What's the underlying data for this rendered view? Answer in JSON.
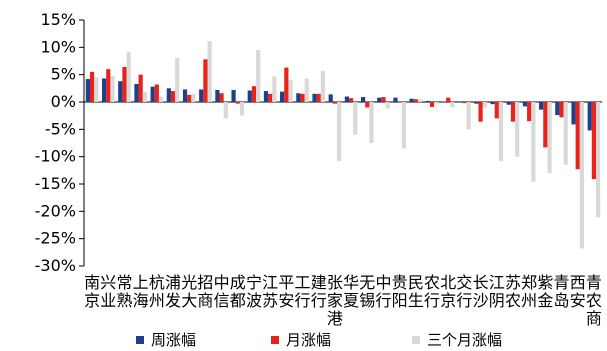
{
  "chart_data": {
    "type": "bar",
    "title": "",
    "xlabel": "",
    "ylabel": "",
    "ylim": [
      -30,
      15
    ],
    "y_ticks": [
      "15%",
      "10%",
      "5%",
      "0%",
      "-5%",
      "-10%",
      "-15%",
      "-20%",
      "-25%",
      "-30%"
    ],
    "y_tick_values": [
      15,
      10,
      5,
      0,
      -5,
      -10,
      -15,
      -20,
      -25,
      -30
    ],
    "grid": false,
    "legend_position": "bottom",
    "categories": [
      "南京",
      "兴业",
      "常熟",
      "上海",
      "杭州",
      "浦发",
      "光大",
      "招商",
      "中信",
      "成都",
      "宁波",
      "江苏",
      "平安",
      "工行",
      "建行",
      "张家港",
      "华夏",
      "无锡",
      "中行",
      "贵阳",
      "民生",
      "农行",
      "北京",
      "交行",
      "长沙",
      "江阴",
      "苏农",
      "郑州",
      "紫金",
      "青岛",
      "西安",
      "青农商"
    ],
    "series": [
      {
        "name": "周涨幅",
        "color": "#1f3f8f",
        "values": [
          4.2,
          4.3,
          3.8,
          3.3,
          2.8,
          2.5,
          2.3,
          2.3,
          2.2,
          2.2,
          2.1,
          2.0,
          1.9,
          1.6,
          1.5,
          1.4,
          1.0,
          0.9,
          0.8,
          0.8,
          0.6,
          0.2,
          0.1,
          -0.1,
          -0.3,
          -0.4,
          -0.5,
          -0.8,
          -1.4,
          -2.4,
          -4.1,
          -5.2
        ]
      },
      {
        "name": "月涨幅",
        "color": "#e8231a",
        "values": [
          5.5,
          6.0,
          6.4,
          5.0,
          3.2,
          2.0,
          1.3,
          7.8,
          1.6,
          -0.3,
          2.9,
          1.5,
          6.3,
          1.5,
          1.5,
          -0.3,
          0.7,
          -1.0,
          0.9,
          -0.1,
          0.5,
          -0.9,
          0.8,
          -0.2,
          -3.6,
          -3.0,
          -3.6,
          -3.5,
          -8.3,
          -2.8,
          -12.3,
          -14.1
        ]
      },
      {
        "name": "三个月涨幅",
        "color": "#d9d9d9",
        "values": [
          4.5,
          4.8,
          9.2,
          1.8,
          1.0,
          8.1,
          1.5,
          11.1,
          -3.0,
          -2.5,
          9.5,
          4.7,
          4.0,
          4.3,
          5.7,
          -10.8,
          -6.0,
          -7.5,
          -1.2,
          -8.5,
          0.5,
          -0.3,
          -1.0,
          -5.0,
          -1.0,
          -10.8,
          -10.0,
          -14.6,
          -13.0,
          -11.5,
          -26.8,
          -21.1
        ]
      }
    ]
  }
}
